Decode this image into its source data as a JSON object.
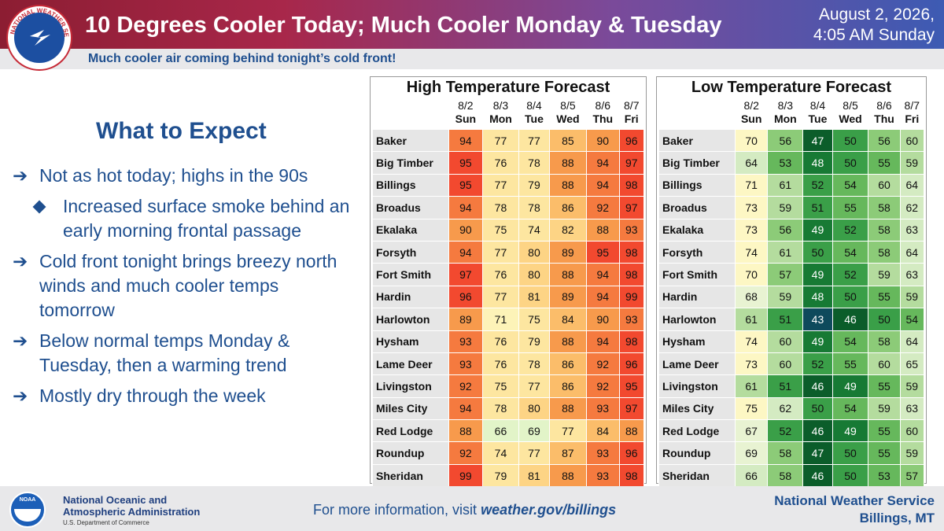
{
  "header": {
    "title": "10 Degrees Cooler Today; Much Cooler Monday & Tuesday",
    "date": "August 2, 2026,",
    "time": "4:05 AM Sunday",
    "subtitle": "Much cooler air coming behind tonight’s cold front!",
    "logo_text": "NATIONAL WEATHER SERVICE"
  },
  "main": {
    "heading": "What to Expect",
    "bullets": [
      "Not as hot today; highs in the 90s",
      "Increased surface smoke behind an early morning frontal passage",
      "Cold front tonight brings breezy north winds and much cooler temps tomorrow",
      "Below normal temps Monday & Tuesday, then a warming trend",
      "Mostly dry through the week"
    ],
    "arrow": "➔"
  },
  "days": [
    {
      "date": "8/2",
      "day": "Sun"
    },
    {
      "date": "8/3",
      "day": "Mon"
    },
    {
      "date": "8/4",
      "day": "Tue"
    },
    {
      "date": "8/5",
      "day": "Wed"
    },
    {
      "date": "8/6",
      "day": "Thu"
    },
    {
      "date": "8/7",
      "day": "Fri"
    }
  ],
  "high_forecast": {
    "title": "High Temperature Forecast",
    "rows": [
      {
        "city": "Baker",
        "values": [
          94,
          77,
          77,
          85,
          90,
          96
        ]
      },
      {
        "city": "Big Timber",
        "values": [
          95,
          76,
          78,
          88,
          94,
          97
        ]
      },
      {
        "city": "Billings",
        "values": [
          95,
          77,
          79,
          88,
          94,
          98
        ]
      },
      {
        "city": "Broadus",
        "values": [
          94,
          78,
          78,
          86,
          92,
          97
        ]
      },
      {
        "city": "Ekalaka",
        "values": [
          90,
          75,
          74,
          82,
          88,
          93
        ]
      },
      {
        "city": "Forsyth",
        "values": [
          94,
          77,
          80,
          89,
          95,
          98
        ]
      },
      {
        "city": "Fort Smith",
        "values": [
          97,
          76,
          80,
          88,
          94,
          98
        ]
      },
      {
        "city": "Hardin",
        "values": [
          96,
          77,
          81,
          89,
          94,
          99
        ]
      },
      {
        "city": "Harlowton",
        "values": [
          89,
          71,
          75,
          84,
          90,
          93
        ]
      },
      {
        "city": "Hysham",
        "values": [
          93,
          76,
          79,
          88,
          94,
          98
        ]
      },
      {
        "city": "Lame Deer",
        "values": [
          93,
          76,
          78,
          86,
          92,
          96
        ]
      },
      {
        "city": "Livingston",
        "values": [
          92,
          75,
          77,
          86,
          92,
          95
        ]
      },
      {
        "city": "Miles City",
        "values": [
          94,
          78,
          80,
          88,
          93,
          97
        ]
      },
      {
        "city": "Red Lodge",
        "values": [
          88,
          66,
          69,
          77,
          84,
          88
        ]
      },
      {
        "city": "Roundup",
        "values": [
          92,
          74,
          77,
          87,
          93,
          96
        ]
      },
      {
        "city": "Sheridan",
        "values": [
          99,
          79,
          81,
          88,
          93,
          98
        ]
      }
    ]
  },
  "low_forecast": {
    "title": "Low Temperature Forecast",
    "rows": [
      {
        "city": "Baker",
        "values": [
          70,
          56,
          47,
          50,
          56,
          60
        ]
      },
      {
        "city": "Big Timber",
        "values": [
          64,
          53,
          48,
          50,
          55,
          59
        ]
      },
      {
        "city": "Billings",
        "values": [
          71,
          61,
          52,
          54,
          60,
          64
        ]
      },
      {
        "city": "Broadus",
        "values": [
          73,
          59,
          51,
          55,
          58,
          62
        ]
      },
      {
        "city": "Ekalaka",
        "values": [
          73,
          56,
          49,
          52,
          58,
          63
        ]
      },
      {
        "city": "Forsyth",
        "values": [
          74,
          61,
          50,
          54,
          58,
          64
        ]
      },
      {
        "city": "Fort Smith",
        "values": [
          70,
          57,
          49,
          52,
          59,
          63
        ]
      },
      {
        "city": "Hardin",
        "values": [
          68,
          59,
          48,
          50,
          55,
          59
        ]
      },
      {
        "city": "Harlowton",
        "values": [
          61,
          51,
          43,
          46,
          50,
          54
        ]
      },
      {
        "city": "Hysham",
        "values": [
          74,
          60,
          49,
          54,
          58,
          64
        ]
      },
      {
        "city": "Lame Deer",
        "values": [
          73,
          60,
          52,
          55,
          60,
          65
        ]
      },
      {
        "city": "Livingston",
        "values": [
          61,
          51,
          46,
          49,
          55,
          59
        ]
      },
      {
        "city": "Miles City",
        "values": [
          75,
          62,
          50,
          54,
          59,
          63
        ]
      },
      {
        "city": "Red Lodge",
        "values": [
          67,
          52,
          46,
          49,
          55,
          60
        ]
      },
      {
        "city": "Roundup",
        "values": [
          69,
          58,
          47,
          50,
          55,
          59
        ]
      },
      {
        "city": "Sheridan",
        "values": [
          66,
          58,
          46,
          50,
          53,
          57
        ]
      }
    ]
  },
  "footer": {
    "noaa_line1": "National Oceanic and",
    "noaa_line2": "Atmospheric Administration",
    "noaa_sub": "U.S. Department of Commerce",
    "noaa_logo_text": "NOAA",
    "more_info_prefix": "For more information, visit ",
    "more_info_link": "weather.gov/billings",
    "nws_line1": "National Weather Service",
    "nws_line2": "Billings, MT"
  },
  "colors": {
    "title_blue": "#1f4f8f",
    "high_hot": "#f2492f",
    "high_warm": "#f79a4c",
    "high_mild": "#fde6a0",
    "low_cold": "#0b5d2a",
    "low_mild": "#c8e7b8"
  }
}
